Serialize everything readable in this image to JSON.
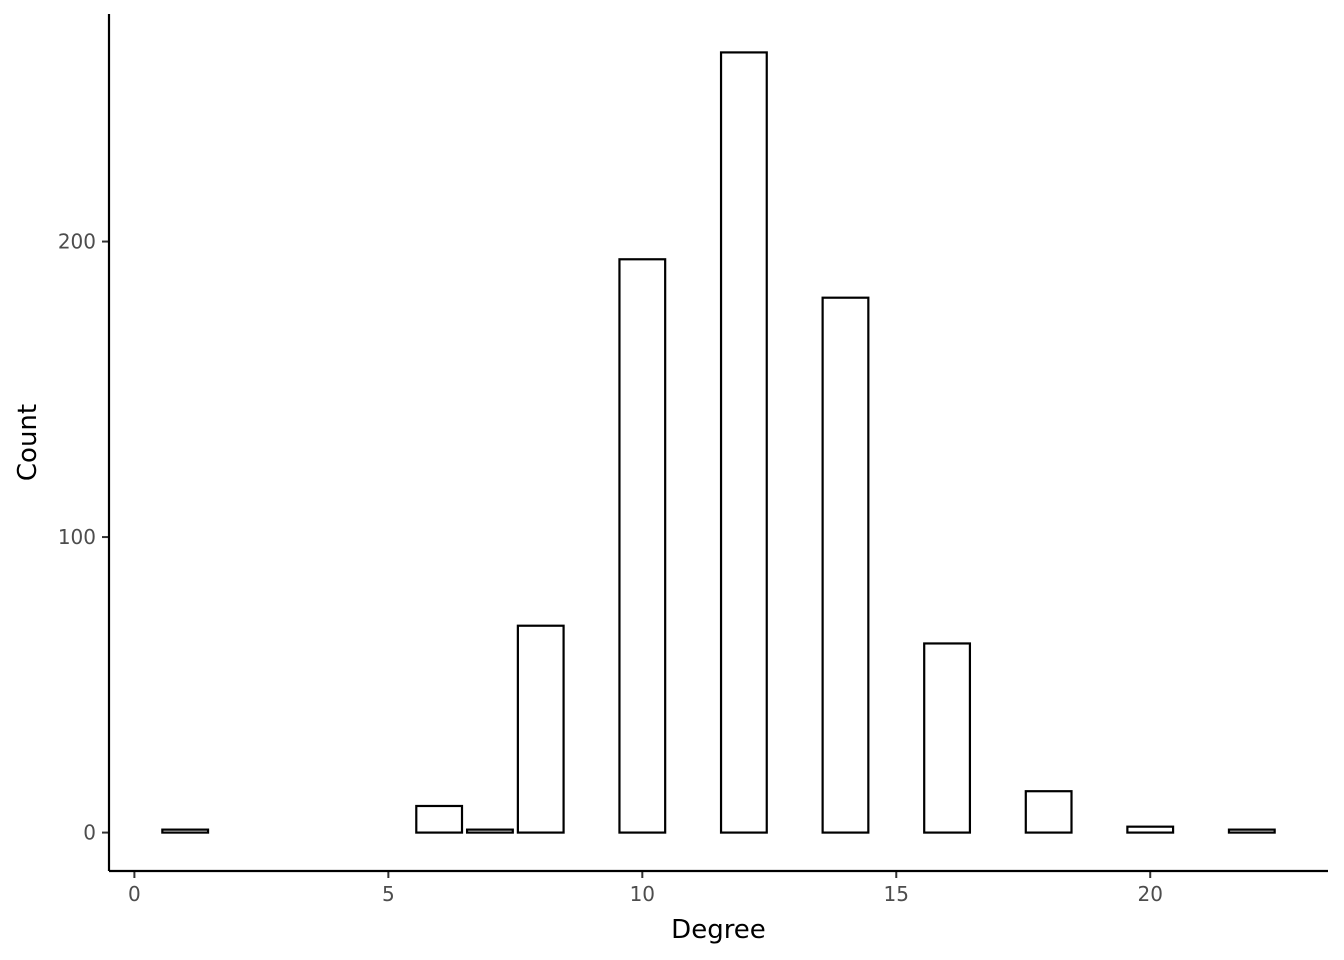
{
  "chart_data": {
    "type": "bar",
    "title": "",
    "xlabel": "Degree",
    "ylabel": "Count",
    "x": [
      1,
      6,
      7,
      8,
      10,
      12,
      14,
      16,
      18,
      20,
      22
    ],
    "values": [
      1,
      9,
      1,
      70,
      194,
      264,
      181,
      64,
      14,
      2,
      1
    ],
    "xlim": [
      -0.5,
      23.5
    ],
    "ylim": [
      -13,
      277
    ],
    "xticks": [
      0,
      5,
      10,
      15,
      20
    ],
    "yticks": [
      0,
      100,
      200
    ],
    "xtick_labels": [
      "0",
      "5",
      "10",
      "15",
      "20"
    ],
    "ytick_labels": [
      "0",
      "100",
      "200"
    ],
    "bar_width": 0.9,
    "grid": false,
    "legend": "none",
    "colors": {
      "bar_fill": "#ffffff",
      "bar_stroke": "#000000",
      "axis": "#000000",
      "tick_label": "#4d4d4d"
    }
  }
}
